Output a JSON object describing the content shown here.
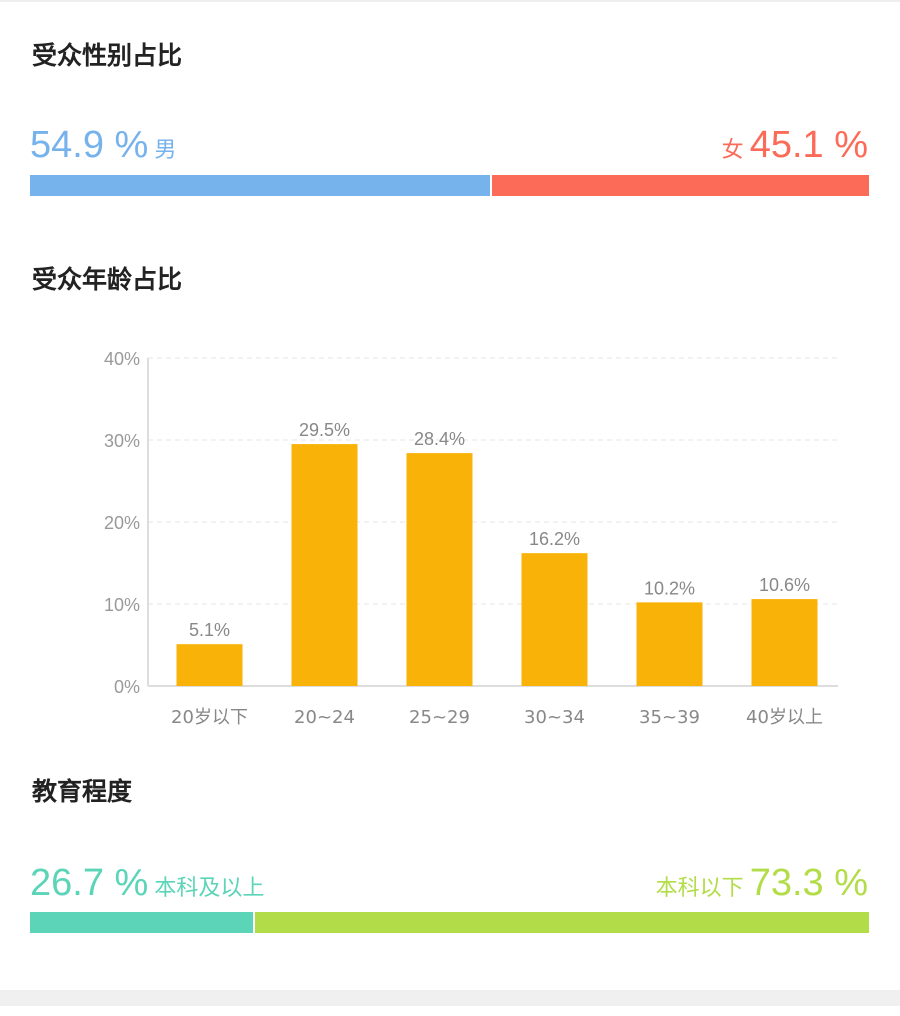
{
  "gender": {
    "title": "受众性别占比",
    "male": {
      "value": "54.9 %",
      "label": "男",
      "fraction": 0.549,
      "color": "#76b2ec"
    },
    "female": {
      "value": "45.1 %",
      "label": "女",
      "fraction": 0.451,
      "color": "#fb6b58"
    }
  },
  "age": {
    "title": "受众年龄占比"
  },
  "education": {
    "title": "教育程度",
    "above": {
      "value": "26.7 %",
      "label": "本科及以上",
      "fraction": 0.267,
      "color": "#5bd4b8"
    },
    "below": {
      "value": "73.3 %",
      "label": "本科以下",
      "fraction": 0.733,
      "color": "#b2dd48"
    }
  },
  "chart_data": {
    "type": "bar",
    "categories": [
      "20岁以下",
      "20~24",
      "25~29",
      "30~34",
      "35~39",
      "40岁以上"
    ],
    "values": [
      5.1,
      29.5,
      28.4,
      16.2,
      10.2,
      10.6
    ],
    "data_labels": [
      "5.1%",
      "29.5%",
      "28.4%",
      "16.2%",
      "10.2%",
      "10.6%"
    ],
    "yticks": [
      "0%",
      "10%",
      "20%",
      "30%",
      "40%"
    ],
    "ylim": [
      0,
      40
    ],
    "grid": true,
    "bar_color": "#f9b207",
    "title": "",
    "xlabel": "",
    "ylabel": ""
  }
}
